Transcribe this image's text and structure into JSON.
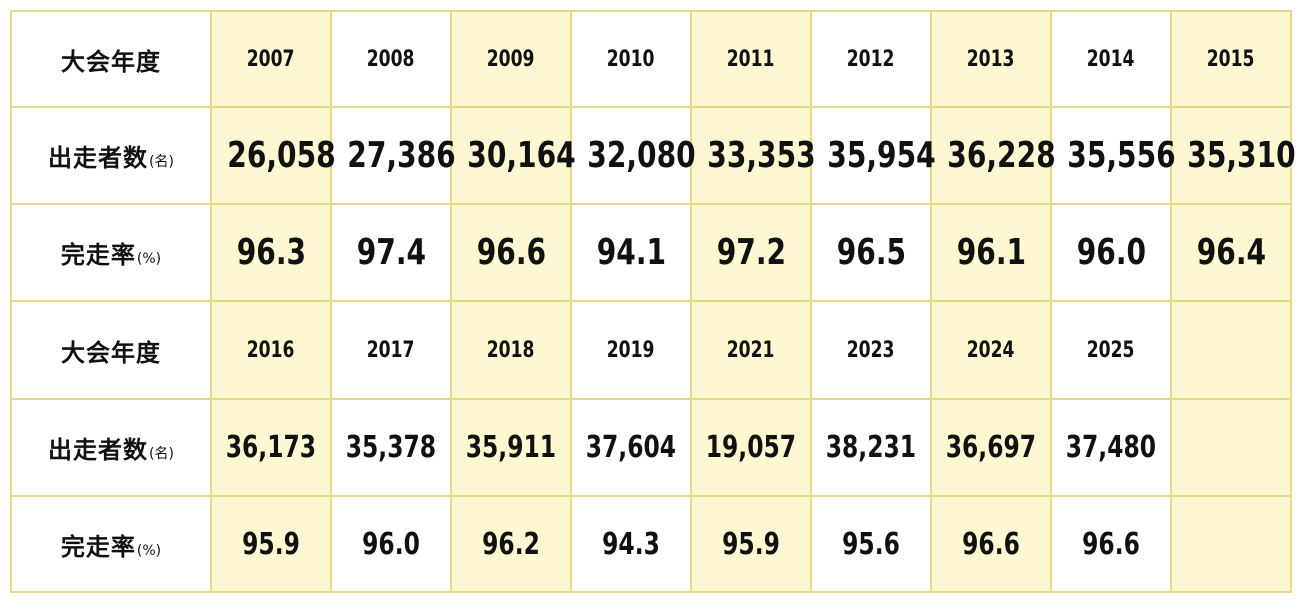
{
  "table1": {
    "header_label": "大会年度",
    "runners_label": "出走者数",
    "runners_unit": "(名)",
    "finish_label": "完走率",
    "finish_unit": "(%)",
    "years": [
      "2007",
      "2008",
      "2009",
      "2010",
      "2011",
      "2012",
      "2013",
      "2014",
      "2015"
    ],
    "runners": [
      "26,058",
      "27,386",
      "30,164",
      "32,080",
      "33,353",
      "35,954",
      "36,228",
      "35,556",
      "35,310"
    ],
    "finish_rate": [
      "96.3",
      "97.4",
      "96.6",
      "94.1",
      "97.2",
      "96.5",
      "96.1",
      "96.0",
      "96.4"
    ]
  },
  "table2": {
    "header_label": "大会年度",
    "runners_label": "出走者数",
    "runners_unit": "(名)",
    "finish_label": "完走率",
    "finish_unit": "(%)",
    "years": [
      "2016",
      "2017",
      "2018",
      "2019",
      "2021",
      "2023",
      "2024",
      "2025",
      ""
    ],
    "runners": [
      "36,173",
      "35,378",
      "35,911",
      "37,604",
      "19,057",
      "38,231",
      "36,697",
      "37,480",
      ""
    ],
    "finish_rate": [
      "95.9",
      "96.0",
      "96.2",
      "94.3",
      "95.9",
      "95.6",
      "96.6",
      "96.6",
      ""
    ]
  },
  "colors": {
    "border": "#e8d98a",
    "highlight_column": "#fdf8d2",
    "plain_column": "#ffffff",
    "text": "#111111"
  }
}
